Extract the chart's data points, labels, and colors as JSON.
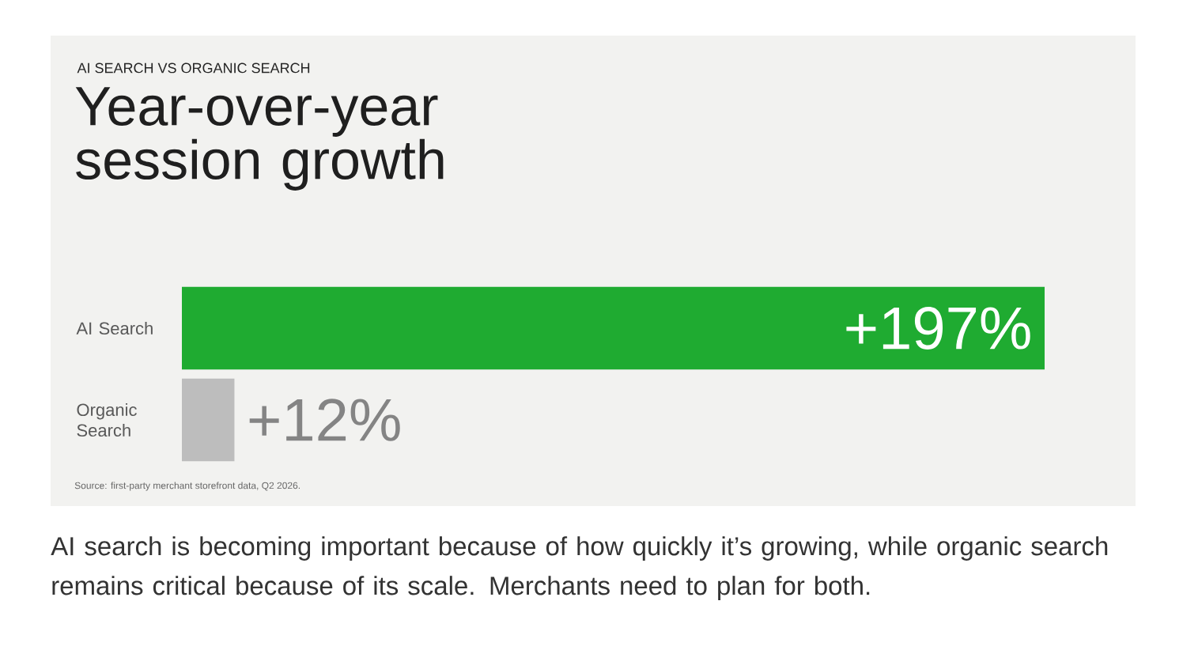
{
  "chart_data": {
    "type": "bar",
    "orientation": "horizontal",
    "subtitle": "AI SEARCH VS ORGANIC SEARCH",
    "title": "Year-over-year session growth",
    "categories": [
      "AI Search",
      "Organic Search"
    ],
    "values": [
      197,
      12
    ],
    "colors": [
      "#1fab31",
      "#bdbdbd"
    ],
    "value_labels": [
      "+197%",
      "+12%"
    ],
    "annotations": [
      "Source: first-party merchant storefront data, Q2 2026.",
      "AI search is becoming important because of how quickly it’s growing, while organic search remains critical because of its scale. Merchants need to plan for both."
    ]
  }
}
